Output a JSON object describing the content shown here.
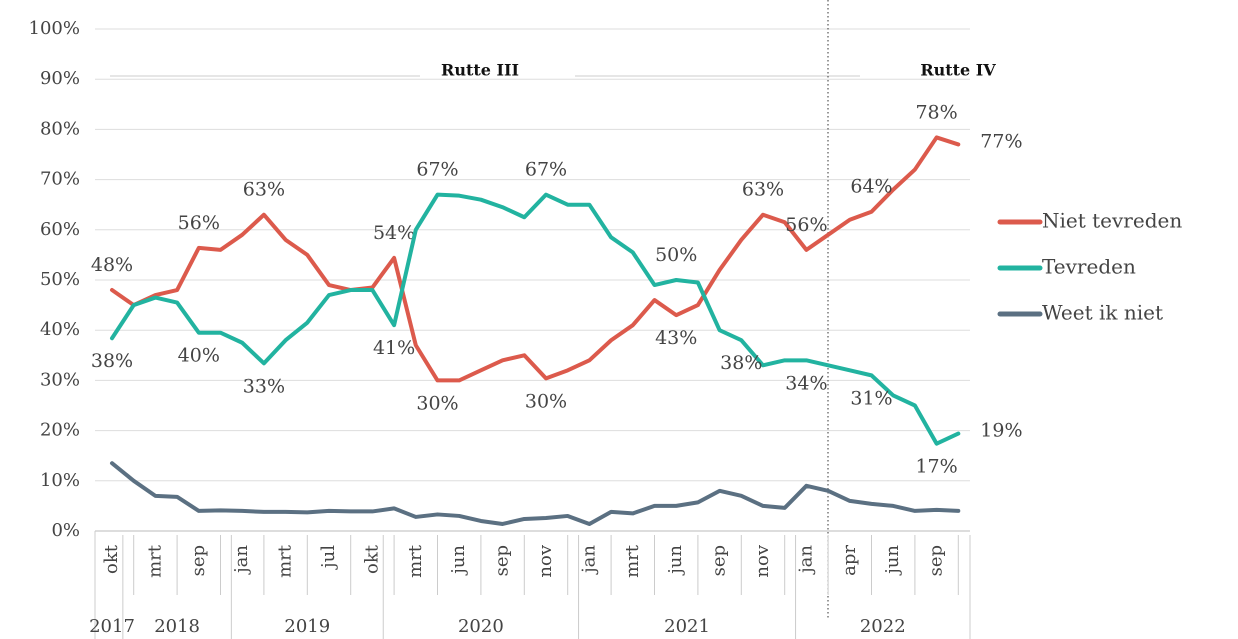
{
  "chart_data": {
    "type": "line",
    "categories": [
      "okt",
      null,
      "mrt",
      null,
      "sep",
      null,
      "jan",
      null,
      "mrt",
      null,
      "jul",
      null,
      "okt",
      null,
      "mrt",
      null,
      "jun",
      null,
      "sep",
      null,
      "nov",
      null,
      "jan",
      null,
      "mrt",
      null,
      "jun",
      null,
      "sep",
      null,
      "nov",
      null,
      "jan",
      null,
      "apr",
      null,
      "jun",
      null,
      "sep",
      null
    ],
    "year_groups": [
      {
        "label": "2017",
        "count": 1
      },
      {
        "label": "2018",
        "count": 5
      },
      {
        "label": "2019",
        "count": 7
      },
      {
        "label": "2020",
        "count": 9
      },
      {
        "label": "2021",
        "count": 10
      },
      {
        "label": "2022",
        "count": 8
      }
    ],
    "series": [
      {
        "name": "Niet tevreden",
        "color": "#dc5a4c",
        "values": [
          48,
          45,
          47,
          48,
          56.4,
          56,
          59,
          63,
          58,
          55,
          49,
          48,
          48.5,
          54.4,
          37,
          30,
          30,
          32,
          34,
          35,
          30.4,
          32,
          34,
          38,
          41,
          46,
          43,
          45,
          52,
          58,
          63,
          61.5,
          56,
          59,
          62,
          63.6,
          68,
          72,
          78.4,
          77
        ],
        "value_labels": [
          "48%",
          null,
          null,
          null,
          "56%",
          null,
          null,
          "63%",
          null,
          null,
          null,
          null,
          null,
          "54%",
          null,
          "30%",
          null,
          null,
          null,
          null,
          "30%",
          null,
          null,
          null,
          null,
          null,
          "43%",
          null,
          null,
          null,
          "63%",
          null,
          "56%",
          null,
          null,
          "64%",
          null,
          null,
          "78%",
          "77%"
        ]
      },
      {
        "name": "Tevreden",
        "color": "#22b3a0",
        "values": [
          38.4,
          45,
          46.5,
          45.5,
          39.5,
          39.5,
          37.5,
          33.4,
          38,
          41.5,
          47,
          48,
          48,
          41,
          60,
          67,
          66.8,
          66,
          64.5,
          62.5,
          67,
          65,
          65,
          58.5,
          55.5,
          49,
          50,
          49.5,
          40,
          38,
          33,
          34,
          34,
          33,
          32,
          31,
          27,
          25,
          17.4,
          19.4
        ],
        "value_labels": [
          "38%",
          null,
          null,
          null,
          "40%",
          null,
          null,
          "33%",
          null,
          null,
          null,
          null,
          null,
          "41%",
          null,
          "67%",
          null,
          null,
          null,
          null,
          "67%",
          null,
          null,
          null,
          null,
          null,
          "50%",
          null,
          null,
          "38%",
          null,
          null,
          "34%",
          null,
          null,
          "31%",
          null,
          null,
          "17%",
          "19%"
        ]
      },
      {
        "name": "Weet ik niet",
        "color": "#5b7082",
        "values": [
          13.5,
          10,
          7,
          6.8,
          4,
          4.1,
          4,
          3.8,
          3.8,
          3.7,
          4,
          3.9,
          3.9,
          4.5,
          2.8,
          3.3,
          3,
          2,
          1.4,
          2.4,
          2.6,
          3,
          1.4,
          3.8,
          3.5,
          5,
          5,
          5.7,
          8,
          7,
          5,
          4.6,
          9,
          8,
          6,
          5.4,
          5,
          4,
          4.2,
          4
        ]
      }
    ],
    "ylim": [
      0,
      100
    ],
    "yticks": [
      {
        "value": 0,
        "label": "0%"
      },
      {
        "value": 10,
        "label": "10%"
      },
      {
        "value": 20,
        "label": "20%"
      },
      {
        "value": 30,
        "label": "30%"
      },
      {
        "value": 40,
        "label": "40%"
      },
      {
        "value": 50,
        "label": "50%"
      },
      {
        "value": 60,
        "label": "60%"
      },
      {
        "value": 70,
        "label": "70%"
      },
      {
        "value": 80,
        "label": "80%"
      },
      {
        "value": 90,
        "label": "90%"
      },
      {
        "value": 100,
        "label": "100%"
      }
    ],
    "grid": true,
    "legend": "right",
    "annotations": [
      {
        "text": "Rutte III"
      },
      {
        "text": "Rutte IV"
      }
    ]
  }
}
